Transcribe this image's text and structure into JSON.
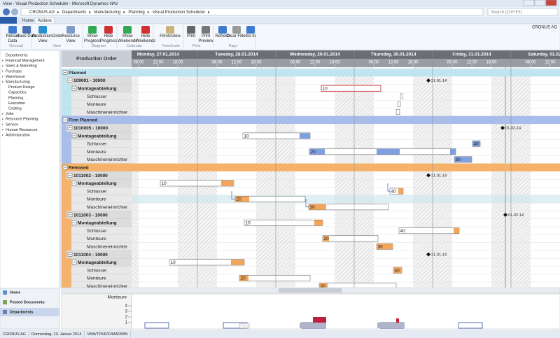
{
  "window": {
    "title": "View - Visual Production Scheduler - Microsoft Dynamics NAV"
  },
  "address": {
    "path": [
      "CRONUS AG",
      "Departments",
      "Manufacturing",
      "Planning",
      "Visual Production Scheduler"
    ],
    "search": "Search (Ctrl+F3)"
  },
  "ribbon": {
    "tabs": [
      "Home",
      "Actions"
    ],
    "company": "CRONUS AG",
    "groups": [
      {
        "name": "General",
        "buttons": [
          "Reload Data",
          "Save Data"
        ]
      },
      {
        "name": "View",
        "buttons": [
          "ProductionOrder View",
          "Resource View"
        ]
      },
      {
        "name": "Diagram",
        "buttons": [
          "Show Progress",
          "Hide Progress"
        ]
      },
      {
        "name": "Calendar",
        "buttons": [
          "Show Weekends",
          "Hide Weekends"
        ]
      },
      {
        "name": "TimeScale",
        "buttons": [
          "FitIntoView"
        ]
      },
      {
        "name": "Print",
        "buttons": [
          "Print",
          "Print Preview"
        ]
      },
      {
        "name": "Page",
        "buttons": [
          "Refresh",
          "Clear Filter",
          "Go to"
        ]
      }
    ]
  },
  "nav": {
    "items": [
      "Departments",
      "Financial Management",
      "Sales & Marketing",
      "Purchase",
      "Warehouse",
      "Manufacturing",
      "Product Design",
      "Capacities",
      "Planning",
      "Execution",
      "Costing",
      "Jobs",
      "Resource Planning",
      "Service",
      "Human Resources",
      "Administration"
    ],
    "bottom": [
      "Home",
      "Posted Documents",
      "Departments"
    ]
  },
  "gantt": {
    "header": "Production Order",
    "days": [
      "Monday, 27.01.2014",
      "Tuesday, 28.01.2014",
      "Wednesday, 29.01.2014",
      "Thursday, 30.01.2014",
      "Friday, 31.01.2014",
      "Saturday, 01.02.2014"
    ],
    "hours": [
      "06:00",
      "12:00",
      "18:00"
    ],
    "rows": [
      {
        "label": "Planned",
        "kind": "group"
      },
      {
        "label": "109001 - 10000",
        "kind": "order"
      },
      {
        "label": "Montageabteilung",
        "kind": "dept"
      },
      {
        "label": "Schlosser",
        "kind": "res"
      },
      {
        "label": "Monteure",
        "kind": "res"
      },
      {
        "label": "Maschineneinrichter",
        "kind": "res"
      },
      {
        "label": "Firm Planned",
        "kind": "group"
      },
      {
        "label": "1010005 - 10000",
        "kind": "order"
      },
      {
        "label": "Montageabteilung",
        "kind": "dept"
      },
      {
        "label": "Schlosser",
        "kind": "res"
      },
      {
        "label": "Monteure",
        "kind": "res"
      },
      {
        "label": "Maschineneinrichter",
        "kind": "res"
      },
      {
        "label": "Released",
        "kind": "group"
      },
      {
        "label": "1011002 - 10000",
        "kind": "order"
      },
      {
        "label": "Montageabteilung",
        "kind": "dept"
      },
      {
        "label": "Schlosser",
        "kind": "res"
      },
      {
        "label": "Monteure",
        "kind": "res"
      },
      {
        "label": "Maschineneinrichter",
        "kind": "res"
      },
      {
        "label": "1011003 - 10000",
        "kind": "order"
      },
      {
        "label": "Montageabteilung",
        "kind": "dept"
      },
      {
        "label": "Schlosser",
        "kind": "res"
      },
      {
        "label": "Monteure",
        "kind": "res"
      },
      {
        "label": "Maschineneinrichter",
        "kind": "res"
      },
      {
        "label": "1011004 - 10000",
        "kind": "order"
      },
      {
        "label": "Montageabteilung",
        "kind": "dept"
      },
      {
        "label": "Schlosser",
        "kind": "res"
      },
      {
        "label": "Monteure",
        "kind": "res"
      },
      {
        "label": "Maschineneinrichter",
        "kind": "res"
      }
    ],
    "bars": [
      "10",
      "10",
      "40",
      "20",
      "30",
      "10",
      "40",
      "20",
      "30",
      "10",
      "40",
      "20",
      "30",
      "10",
      "40",
      "20",
      "30"
    ],
    "milestones": [
      "31-01-14",
      "01-02-14",
      "31-01-14",
      "01-02-14",
      "31-01-14"
    ]
  },
  "load_chart": {
    "title": "Monteure",
    "ylim": [
      0,
      5
    ],
    "yticks": [
      1,
      2,
      3,
      4
    ]
  },
  "status": [
    "CRONUS AG",
    "Donnerstag, 23. Januar 2014",
    "VMWTP64D\\VMADMIN"
  ]
}
